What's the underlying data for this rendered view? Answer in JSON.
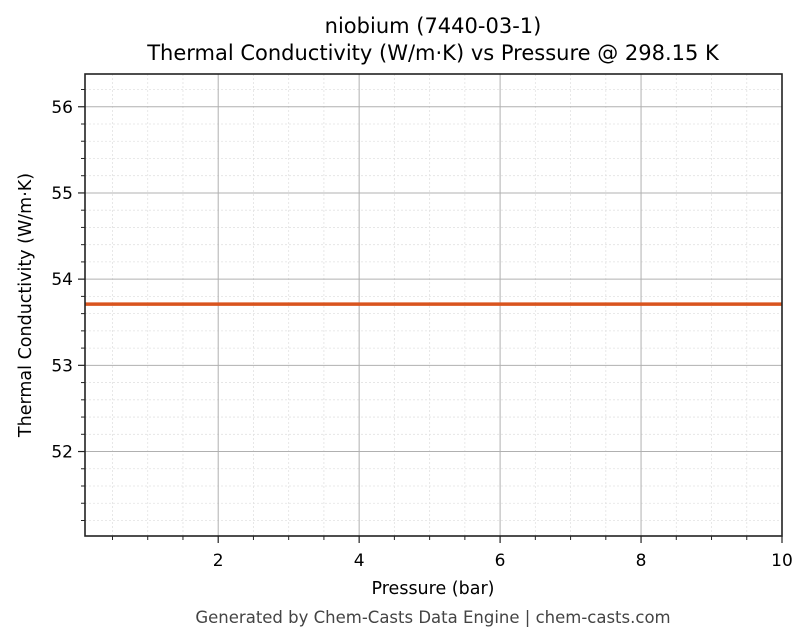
{
  "chart_data": {
    "type": "line",
    "title": "niobium (7440-03-1)",
    "subtitle": "Thermal Conductivity (W/m·K) vs Pressure @ 298.15 K",
    "xlabel": "Pressure (bar)",
    "ylabel": "Thermal Conductivity (W/m·K)",
    "xlim": [
      0.11,
      10
    ],
    "ylim": [
      51.02,
      56.38
    ],
    "xticks": [
      2,
      4,
      6,
      8,
      10
    ],
    "yticks": [
      52,
      53,
      54,
      55,
      56
    ],
    "grid": true,
    "minor_grid": true,
    "legend": null,
    "series": [
      {
        "name": "Thermal Conductivity",
        "color": "#d9541e",
        "x": [
          0.11,
          1,
          2,
          3,
          4,
          5,
          6,
          7,
          8,
          9,
          10
        ],
        "y": [
          53.71,
          53.71,
          53.71,
          53.71,
          53.71,
          53.71,
          53.71,
          53.71,
          53.71,
          53.71,
          53.71
        ]
      }
    ]
  },
  "footer": "Generated by Chem-Casts Data Engine | chem-casts.com"
}
